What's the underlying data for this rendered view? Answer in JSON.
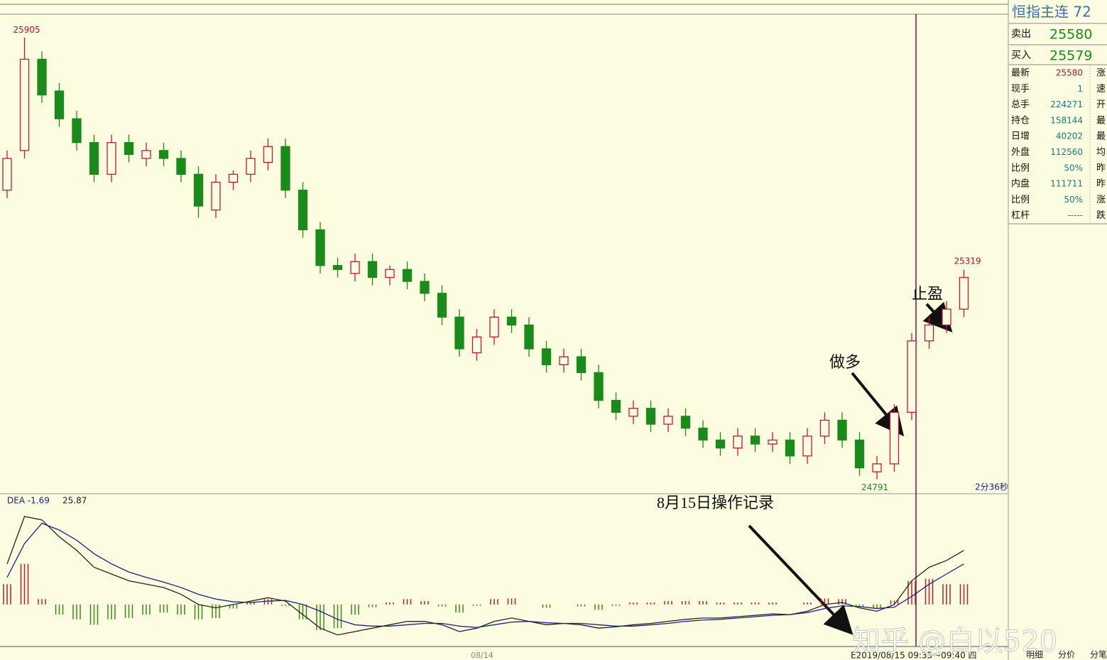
{
  "chart_data": [
    {
      "type": "candlestick",
      "ylim": [
        24760,
        25960
      ],
      "up_color": "#c8143c",
      "down_color": "#1a8a1a",
      "open": [
        25520,
        25620,
        25850,
        25770,
        25700,
        25640,
        25560,
        25640,
        25600,
        25620,
        25600,
        25560,
        25470,
        25540,
        25560,
        25590,
        25630,
        25520,
        25420,
        25330,
        25310,
        25340,
        25300,
        25320,
        25290,
        25260,
        25200,
        25110,
        25150,
        25200,
        25180,
        25120,
        25080,
        25100,
        25060,
        24990,
        24950,
        24970,
        24930,
        24950,
        24920,
        24890,
        24870,
        24900,
        24880,
        24890,
        24850,
        24900,
        24940,
        24890,
        24810,
        24830,
        24960,
        25140,
        25180,
        25220
      ],
      "high": [
        25620,
        25905,
        25870,
        25790,
        25720,
        25660,
        25660,
        25660,
        25640,
        25640,
        25620,
        25580,
        25560,
        25570,
        25620,
        25650,
        25650,
        25540,
        25440,
        25350,
        25360,
        25360,
        25330,
        25340,
        25310,
        25280,
        25220,
        25170,
        25220,
        25220,
        25200,
        25140,
        25120,
        25120,
        25080,
        25010,
        24990,
        24990,
        24970,
        24970,
        24940,
        24910,
        24920,
        24920,
        24910,
        24910,
        24920,
        24960,
        24960,
        24910,
        24850,
        24980,
        25160,
        25200,
        25240,
        25319
      ],
      "low": [
        25500,
        25600,
        25740,
        25680,
        25620,
        25540,
        25540,
        25590,
        25580,
        25580,
        25540,
        25450,
        25450,
        25520,
        25540,
        25570,
        25500,
        25400,
        25310,
        25300,
        25290,
        25280,
        25280,
        25270,
        25240,
        25180,
        25100,
        25090,
        25130,
        25160,
        25100,
        25060,
        25060,
        25040,
        24970,
        24940,
        24930,
        24910,
        24910,
        24900,
        24870,
        24850,
        24850,
        24860,
        24860,
        24830,
        24830,
        24880,
        24870,
        24800,
        24791,
        24810,
        24940,
        25120,
        25160,
        25200
      ],
      "close": [
        25600,
        25850,
        25760,
        25700,
        25640,
        25560,
        25640,
        25610,
        25620,
        25600,
        25560,
        25480,
        25540,
        25560,
        25600,
        25630,
        25520,
        25420,
        25330,
        25320,
        25340,
        25300,
        25320,
        25290,
        25260,
        25200,
        25120,
        25150,
        25200,
        25180,
        25120,
        25080,
        25100,
        25060,
        24990,
        24960,
        24970,
        24930,
        24950,
        24920,
        24890,
        24870,
        24900,
        24880,
        24890,
        24850,
        24900,
        24940,
        24890,
        24820,
        24830,
        24960,
        25140,
        25180,
        25220,
        25300
      ],
      "max_index": 1,
      "min_index": 50,
      "last_index": 55,
      "countdown": "2分36秒",
      "x_label": "08/14",
      "annotations": [
        "做多",
        "止盈"
      ]
    },
    {
      "type": "macd",
      "ylim": [
        -60,
        150
      ],
      "legend_text": "DEA -1.69",
      "legend_value": "25.87",
      "annotation": "8月15日操作记录",
      "series": [
        {
          "color": "#222",
          "values": [
            60,
            130,
            125,
            100,
            80,
            55,
            45,
            35,
            30,
            25,
            15,
            0,
            -5,
            0,
            5,
            10,
            5,
            -15,
            -35,
            -45,
            -40,
            -35,
            -30,
            -25,
            -25,
            -30,
            -40,
            -35,
            -25,
            -20,
            -25,
            -30,
            -28,
            -30,
            -35,
            -33,
            -30,
            -28,
            -25,
            -22,
            -20,
            -20,
            -18,
            -16,
            -14,
            -15,
            -10,
            0,
            3,
            -5,
            -10,
            0,
            35,
            55,
            65,
            80
          ]
        },
        {
          "color": "#1a237e",
          "values": [
            40,
            90,
            120,
            110,
            95,
            75,
            60,
            48,
            40,
            33,
            25,
            15,
            8,
            4,
            3,
            5,
            6,
            0,
            -10,
            -22,
            -30,
            -32,
            -32,
            -30,
            -28,
            -28,
            -32,
            -34,
            -30,
            -26,
            -25,
            -27,
            -28,
            -28,
            -30,
            -32,
            -32,
            -30,
            -28,
            -25,
            -23,
            -22,
            -20,
            -18,
            -16,
            -15,
            -12,
            -6,
            -2,
            -3,
            -6,
            -4,
            12,
            30,
            45,
            60
          ]
        }
      ],
      "histogram": {
        "up_color": "#b22030",
        "down_color": "#3a8a1a",
        "values": [
          30,
          60,
          8,
          -15,
          -22,
          -30,
          -22,
          -20,
          -15,
          -12,
          -15,
          -22,
          -20,
          -6,
          3,
          8,
          -2,
          -22,
          -38,
          -35,
          -15,
          -4,
          3,
          8,
          5,
          -3,
          -12,
          -2,
          8,
          9,
          0,
          -5,
          0,
          -3,
          -8,
          -2,
          3,
          3,
          5,
          5,
          5,
          3,
          3,
          3,
          3,
          0,
          3,
          9,
          8,
          -3,
          -6,
          6,
          35,
          38,
          30,
          30
        ]
      }
    }
  ],
  "quote_panel": {
    "title": "恒指主连  72",
    "sell_label": "卖出",
    "sell": 25580,
    "buy_label": "买入",
    "buy": 25579,
    "rows": [
      [
        "最新",
        25580,
        "涨"
      ],
      [
        "现手",
        1,
        "速"
      ],
      [
        "总手",
        224271,
        "开"
      ],
      [
        "持仓",
        158144,
        "最"
      ],
      [
        "日增",
        40202,
        "最"
      ],
      [
        "外盘",
        112560,
        "均"
      ],
      [
        "比例",
        "50%",
        "昨"
      ],
      [
        "内盘",
        111711,
        "昨"
      ],
      [
        "比例",
        "50%",
        "涨"
      ],
      [
        "杠杆",
        "-----",
        "跌"
      ]
    ]
  },
  "footer": {
    "time_range": "E2019/08/15 09:35～09:40 四",
    "tabs": [
      "明细",
      "分价",
      "分笔"
    ],
    "watermark": "知乎 @白以520"
  }
}
